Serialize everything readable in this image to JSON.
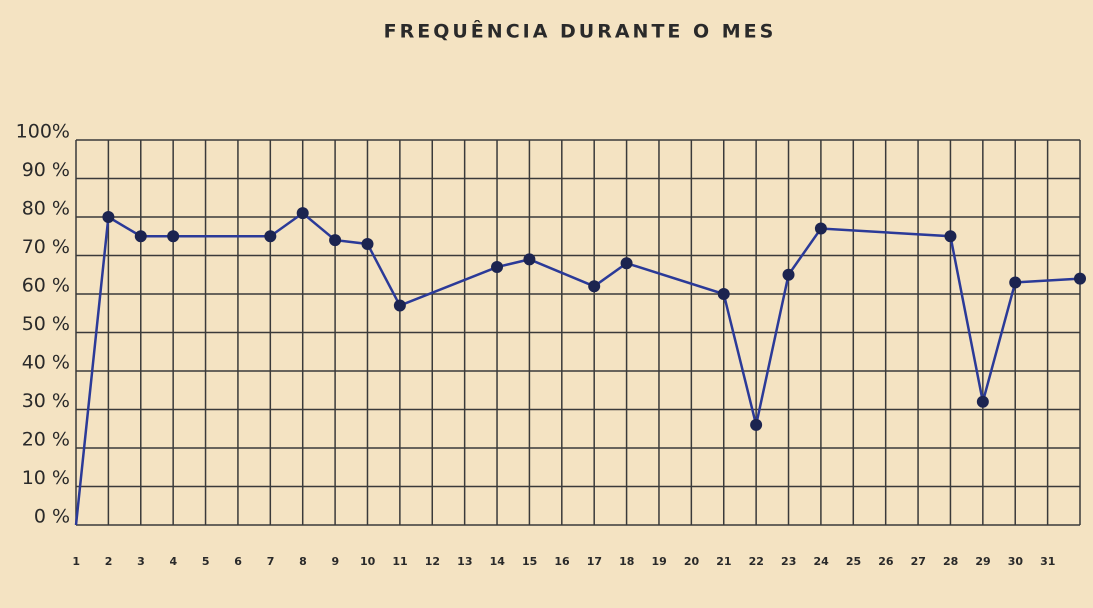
{
  "chart_data": {
    "type": "line",
    "title": "FREQUÊNCIA DURANTE O MES",
    "categories": [
      "1",
      "2",
      "3",
      "4",
      "5",
      "6",
      "7",
      "8",
      "9",
      "10",
      "11",
      "12",
      "13",
      "14",
      "15",
      "16",
      "17",
      "18",
      "19",
      "20",
      "21",
      "22",
      "23",
      "24",
      "25",
      "26",
      "27",
      "28",
      "29",
      "30",
      "31"
    ],
    "xlim": [
      0,
      31
    ],
    "ylim": [
      0,
      100
    ],
    "yticks": [
      {
        "value": 0,
        "label": "0 %"
      },
      {
        "value": 10,
        "label": "10 %"
      },
      {
        "value": 20,
        "label": "20 %"
      },
      {
        "value": 30,
        "label": "30 %"
      },
      {
        "value": 40,
        "label": "40 %"
      },
      {
        "value": 50,
        "label": "50 %"
      },
      {
        "value": 60,
        "label": "60 %"
      },
      {
        "value": 70,
        "label": "70 %"
      },
      {
        "value": 80,
        "label": "80 %"
      },
      {
        "value": 90,
        "label": "90 %"
      },
      {
        "value": 100,
        "label": "100%"
      }
    ],
    "grid": true,
    "color": "#2b3a98",
    "x": [
      0,
      1,
      2,
      3,
      6,
      7,
      8,
      9,
      10,
      13,
      14,
      16,
      17,
      20,
      21,
      22,
      23,
      27,
      28,
      29,
      31
    ],
    "values": [
      0,
      80,
      75,
      75,
      75,
      81,
      74,
      73,
      57,
      67,
      69,
      62,
      68,
      60,
      26,
      65,
      77,
      75,
      32,
      63,
      64
    ]
  }
}
